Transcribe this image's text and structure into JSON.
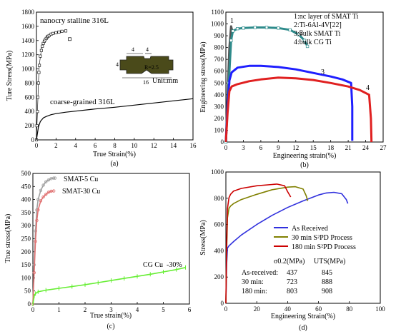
{
  "chart_data": [
    {
      "type": "line",
      "panel_label": "(a)",
      "xlabel": "True Strain(%)",
      "ylabel": "Ture Stress(MPa)",
      "xlim": [
        0,
        16
      ],
      "ylim": [
        0,
        1800
      ],
      "xticks": [
        0,
        2,
        4,
        6,
        8,
        10,
        12,
        14,
        16
      ],
      "yticks": [
        0,
        200,
        400,
        600,
        800,
        1000,
        1200,
        1400,
        1600,
        1800
      ],
      "annotations": [
        "nanocry stalline 316L",
        "coarse-grained 316L"
      ],
      "inset": {
        "labels": [
          "4",
          "4",
          "4",
          "R=2.5",
          "16"
        ],
        "unit": "Unit:mm"
      },
      "series": [
        {
          "name": "nanocry stalline 316L",
          "marker": "square-open",
          "x": [
            0,
            0.05,
            0.1,
            0.15,
            0.2,
            0.25,
            0.3,
            0.4,
            0.5,
            0.6,
            0.7,
            0.8,
            0.9,
            1.0,
            1.1,
            1.2,
            1.3,
            1.5,
            1.7,
            2.0,
            2.3,
            2.6,
            3.0
          ],
          "y": [
            0,
            200,
            400,
            600,
            800,
            950,
            1050,
            1180,
            1260,
            1320,
            1360,
            1390,
            1410,
            1430,
            1450,
            1460,
            1470,
            1490,
            1500,
            1510,
            1520,
            1530,
            1535
          ],
          "extra_points": [
            {
              "x": 3.4,
              "y": 1420
            }
          ]
        },
        {
          "name": "coarse-grained 316L",
          "x": [
            0,
            0.2,
            0.4,
            0.7,
            1,
            1.5,
            2,
            3,
            4,
            6,
            8,
            10,
            12,
            14,
            16
          ],
          "y": [
            0,
            180,
            260,
            310,
            330,
            355,
            370,
            390,
            405,
            435,
            460,
            490,
            520,
            550,
            580
          ]
        }
      ]
    },
    {
      "type": "line",
      "panel_label": "(b)",
      "xlabel": "Engineering strain(%)",
      "ylabel": "Engineering stress(MPa)",
      "xlim": [
        0,
        27
      ],
      "ylim": [
        0,
        1100
      ],
      "xticks": [
        0,
        3,
        6,
        9,
        12,
        15,
        18,
        21,
        24,
        27
      ],
      "yticks": [
        0,
        100,
        200,
        300,
        400,
        500,
        600,
        700,
        800,
        900,
        1000,
        1100
      ],
      "legend": [
        "1:nc layer of SMAT Ti",
        "2:Ti-6Al-4V[22]",
        "3:bulk SMAT Ti",
        "4:bulk CG Ti"
      ],
      "curve_labels": [
        "1",
        "2",
        "3",
        "4"
      ],
      "colors": [
        "#555555",
        "#2e8b8b",
        "#1f1fff",
        "#e02020"
      ],
      "series": [
        {
          "name": "1",
          "x": [
            0,
            0.3,
            0.6,
            0.9,
            1.1
          ],
          "y": [
            0,
            400,
            800,
            980,
            940
          ]
        },
        {
          "name": "2",
          "x": [
            0,
            0.5,
            0.9,
            1.2,
            2,
            3,
            5,
            7,
            9,
            11,
            12.5,
            13.5,
            14
          ],
          "y": [
            0,
            500,
            860,
            940,
            960,
            965,
            970,
            970,
            965,
            950,
            910,
            860,
            810
          ]
        },
        {
          "name": "3",
          "x": [
            0,
            0.3,
            0.6,
            1,
            2,
            4,
            6,
            9,
            12,
            15,
            18,
            20,
            21.5,
            21.7,
            21.7
          ],
          "y": [
            0,
            300,
            520,
            590,
            630,
            645,
            645,
            635,
            615,
            585,
            555,
            530,
            500,
            300,
            10
          ]
        },
        {
          "name": "4",
          "x": [
            0,
            0.3,
            0.6,
            1,
            2,
            4,
            6,
            9,
            12,
            15,
            18,
            21,
            23,
            24.6,
            24.9,
            25
          ],
          "y": [
            0,
            250,
            430,
            470,
            490,
            515,
            530,
            545,
            540,
            525,
            500,
            470,
            440,
            400,
            200,
            0
          ]
        }
      ]
    },
    {
      "type": "line",
      "panel_label": "(c)",
      "xlabel": "True strain(%)",
      "ylabel": "True stress(MPa)",
      "xlim": [
        0,
        6
      ],
      "ylim": [
        0,
        500
      ],
      "xticks": [
        0,
        1,
        2,
        3,
        4,
        5,
        6
      ],
      "yticks": [
        0,
        50,
        100,
        150,
        200,
        250,
        300,
        350,
        400,
        450,
        500
      ],
      "colors": [
        "#a0a0a0",
        "#e07070",
        "#66ee33"
      ],
      "series": [
        {
          "name": "SMAT-5 Cu",
          "x": [
            0,
            0.05,
            0.1,
            0.15,
            0.2,
            0.3,
            0.4,
            0.5,
            0.6,
            0.7,
            0.8,
            0.85
          ],
          "y": [
            0,
            150,
            280,
            360,
            400,
            435,
            455,
            468,
            475,
            480,
            482,
            482
          ]
        },
        {
          "name": "SMAT-30 Cu",
          "x": [
            0,
            0.05,
            0.1,
            0.15,
            0.2,
            0.3,
            0.4,
            0.5,
            0.6,
            0.7,
            0.8
          ],
          "y": [
            0,
            120,
            240,
            320,
            360,
            395,
            410,
            420,
            428,
            432,
            433
          ]
        },
        {
          "name": "CG Cu  -30%",
          "x": [
            0,
            0.05,
            0.1,
            0.2,
            0.5,
            1,
            1.5,
            2,
            2.5,
            3,
            3.5,
            4,
            4.5,
            5,
            5.5,
            5.85
          ],
          "y": [
            0,
            30,
            40,
            47,
            53,
            60,
            67,
            74,
            82,
            90,
            98,
            106,
            114,
            123,
            132,
            140
          ]
        }
      ]
    },
    {
      "type": "line",
      "panel_label": "(d)",
      "xlabel": "Engineering Strain(%)",
      "ylabel": "Stress(MPa)",
      "xlim": [
        0,
        100
      ],
      "ylim": [
        0,
        1000
      ],
      "xticks": [
        0,
        20,
        40,
        60,
        80,
        100
      ],
      "yticks": [
        0,
        200,
        400,
        600,
        800,
        1000
      ],
      "colors": [
        "#3030dd",
        "#808000",
        "#cc0000"
      ],
      "legend": [
        "As Received",
        "30 min S²PD Process",
        "180 min S²PD Process"
      ],
      "table": {
        "header": [
          "σ0.2(MPa)",
          "UTS(MPa)"
        ],
        "rows": [
          {
            "label": "As-received:",
            "sigma": "437",
            "uts": "845"
          },
          {
            "label": "30 min:",
            "sigma": "723",
            "uts": "888"
          },
          {
            "label": "180 min:",
            "sigma": "803",
            "uts": "908"
          }
        ]
      },
      "series": [
        {
          "name": "As Received",
          "x": [
            0,
            0.5,
            1,
            2,
            5,
            10,
            20,
            30,
            40,
            50,
            60,
            65,
            70,
            75,
            78,
            79
          ],
          "y": [
            0,
            300,
            420,
            437,
            470,
            520,
            600,
            670,
            730,
            780,
            825,
            840,
            845,
            835,
            790,
            760
          ]
        },
        {
          "name": "30 min S²PD Process",
          "x": [
            0,
            0.5,
            1,
            2,
            3,
            5,
            10,
            20,
            30,
            40,
            45,
            50,
            52,
            53
          ],
          "y": [
            0,
            400,
            650,
            723,
            740,
            760,
            790,
            830,
            865,
            885,
            888,
            870,
            820,
            780
          ]
        },
        {
          "name": "180 min S²PD Process",
          "x": [
            0,
            0.5,
            1,
            2,
            3,
            5,
            10,
            20,
            30,
            33,
            38,
            40,
            42
          ],
          "y": [
            0,
            450,
            720,
            803,
            830,
            855,
            875,
            895,
            905,
            908,
            895,
            850,
            810
          ]
        }
      ]
    }
  ]
}
